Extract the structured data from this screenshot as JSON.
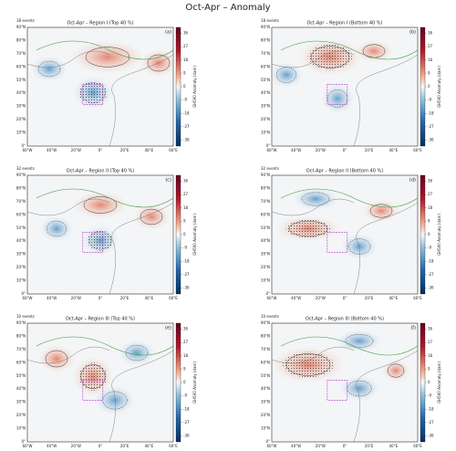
{
  "title": "Oct-Apr – Anomaly",
  "colorbar": {
    "label": "GH500 Anomaly (dam)",
    "lim": [
      -40,
      40
    ],
    "ticks": [
      36,
      27,
      18,
      9,
      0,
      -9,
      -18,
      -27,
      -36
    ]
  },
  "lat_labels": [
    "90°N",
    "80°N",
    "70°N",
    "60°N",
    "50°N",
    "40°N",
    "30°N",
    "20°N",
    "10°N",
    "0°"
  ],
  "lon_labels": [
    "60°W",
    "40°W",
    "20°W",
    "0°",
    "20°E",
    "40°E",
    "60°E"
  ],
  "panels": [
    {
      "title": "Oct-Apr – Region I (Top 40 %)",
      "events": "18 events",
      "letter": "(a)"
    },
    {
      "title": "Oct-Apr – Region I (Bottom 40 %)",
      "events": "18 events",
      "letter": "(b)"
    },
    {
      "title": "Oct-Apr – Region II (Top 40 %)",
      "events": "32 events",
      "letter": "(c)"
    },
    {
      "title": "Oct-Apr – Region II (Bottom 40 %)",
      "events": "32 events",
      "letter": "(d)"
    },
    {
      "title": "Oct-Apr – Region III (Top 40 %)",
      "events": "10 events",
      "letter": "(e)"
    },
    {
      "title": "Oct-Apr – Region III (Bottom 40 %)",
      "events": "10 events",
      "letter": "(f)"
    }
  ]
}
